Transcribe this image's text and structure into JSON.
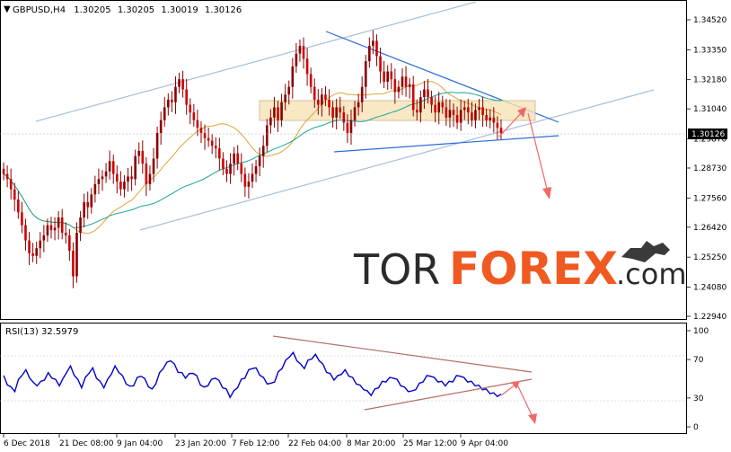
{
  "chart_data": [
    {
      "type": "line",
      "panel": "price",
      "title": "GBPUSD,H4",
      "ohlc": {
        "open": "1.30205",
        "high": "1.30205",
        "low": "1.30019",
        "close": "1.30126"
      },
      "current_price_label": "1.30126",
      "y_ticks": [
        "1.34520",
        "1.33350",
        "1.32180",
        "1.31040",
        "1.29870",
        "1.28730",
        "1.27560",
        "1.26420",
        "1.25250",
        "1.24080",
        "1.22940"
      ],
      "ylim": [
        1.2294,
        1.3452
      ],
      "grid": false,
      "series": [
        {
          "values": [
            1.285,
            1.283,
            1.279,
            1.275,
            1.27,
            1.265,
            1.259,
            1.254,
            1.253,
            1.256,
            1.259,
            1.261,
            1.265,
            1.263,
            1.264,
            1.268,
            1.262,
            1.261,
            1.255,
            1.245,
            1.262,
            1.268,
            1.274,
            1.272,
            1.277,
            1.281,
            1.283,
            1.284,
            1.286,
            1.29,
            1.285,
            1.282,
            1.279,
            1.282,
            1.284,
            1.283,
            1.292,
            1.294,
            1.289,
            1.281,
            1.285,
            1.291,
            1.301,
            1.306,
            1.311,
            1.314,
            1.313,
            1.319,
            1.322,
            1.318,
            1.312,
            1.309,
            1.306,
            1.303,
            1.301,
            1.299,
            1.298,
            1.296,
            1.295,
            1.291,
            1.287,
            1.285,
            1.289,
            1.293,
            1.289,
            1.285,
            1.28,
            1.282,
            1.285,
            1.288,
            1.292,
            1.296,
            1.304,
            1.307,
            1.311,
            1.306,
            1.313,
            1.316,
            1.319,
            1.327,
            1.332,
            1.335,
            1.33,
            1.324,
            1.319,
            1.314,
            1.312,
            1.316,
            1.314,
            1.311,
            1.307,
            1.311,
            1.309,
            1.305,
            1.301,
            1.306,
            1.311,
            1.313,
            1.319,
            1.329,
            1.335,
            1.337,
            1.331,
            1.325,
            1.321,
            1.325,
            1.322,
            1.317,
            1.319,
            1.323,
            1.319,
            1.32,
            1.31,
            1.309,
            1.315,
            1.318,
            1.315,
            1.312,
            1.309,
            1.313,
            1.311,
            1.307,
            1.31,
            1.308,
            1.305,
            1.31,
            1.311,
            1.309,
            1.306,
            1.31,
            1.311,
            1.308,
            1.306,
            1.307,
            1.305,
            1.303,
            1.301
          ],
          "x_range": [
            0,
            560
          ]
        }
      ],
      "x_ticks": [
        "6 Dec 2018",
        "21 Dec 08:00",
        "9 Jan 04:00",
        "23 Jan 20:00",
        "7 Feb 12:00",
        "22 Feb 04:00",
        "8 Mar 20:00",
        "25 Mar 12:00",
        "9 Apr 04:00"
      ]
    },
    {
      "type": "line",
      "panel": "oscillator",
      "title": "RSI(13) 32.5979",
      "y_ticks": [
        "100",
        "70",
        "30",
        "0"
      ],
      "ylim": [
        0,
        100
      ],
      "series": [
        {
          "values": [
            52,
            45,
            40,
            38,
            48,
            55,
            58,
            52,
            45,
            44,
            46,
            50,
            55,
            52,
            48,
            44,
            49,
            58,
            62,
            55,
            48,
            42,
            50,
            57,
            60,
            52,
            46,
            42,
            48,
            56,
            62,
            58,
            52,
            46,
            41,
            44,
            50,
            54,
            49,
            43,
            38,
            46,
            55,
            62,
            66,
            70,
            64,
            58,
            55,
            52,
            54,
            57,
            52,
            45,
            40,
            44,
            48,
            52,
            47,
            42,
            38,
            32,
            36,
            42,
            48,
            52,
            58,
            62,
            60,
            55,
            50,
            46,
            44,
            48,
            56,
            62,
            68,
            74,
            76,
            70,
            64,
            62,
            68,
            72,
            74,
            70,
            64,
            58,
            54,
            50,
            52,
            56,
            58,
            54,
            50,
            46,
            42,
            40,
            36,
            34,
            38,
            42,
            46,
            48,
            50,
            52,
            48,
            44,
            40,
            38,
            36,
            40,
            44,
            48,
            52,
            54,
            50,
            48,
            46,
            44,
            46,
            48,
            52,
            54,
            50,
            48,
            46,
            44,
            42,
            40,
            38,
            36,
            34,
            33,
            32.6
          ]
        }
      ]
    }
  ],
  "brand": {
    "tor": "TOR",
    "forex": "FOREX",
    "dotcom": ".com"
  },
  "colors": {
    "candle_up": "#8b0000",
    "candle_down": "#d10000",
    "rsi_line": "#0000cd",
    "trend_blue": "#2b6cd9",
    "channel": "#a7bfd8",
    "ma_slow": "#1aa59a",
    "ma_fast": "#e0a436",
    "arrow": "#f06868",
    "zone": "#f6e2b7",
    "rsi_trend": "#b27068",
    "brand_dark": "#2b2b2b",
    "brand_accent": "#f05a22"
  }
}
